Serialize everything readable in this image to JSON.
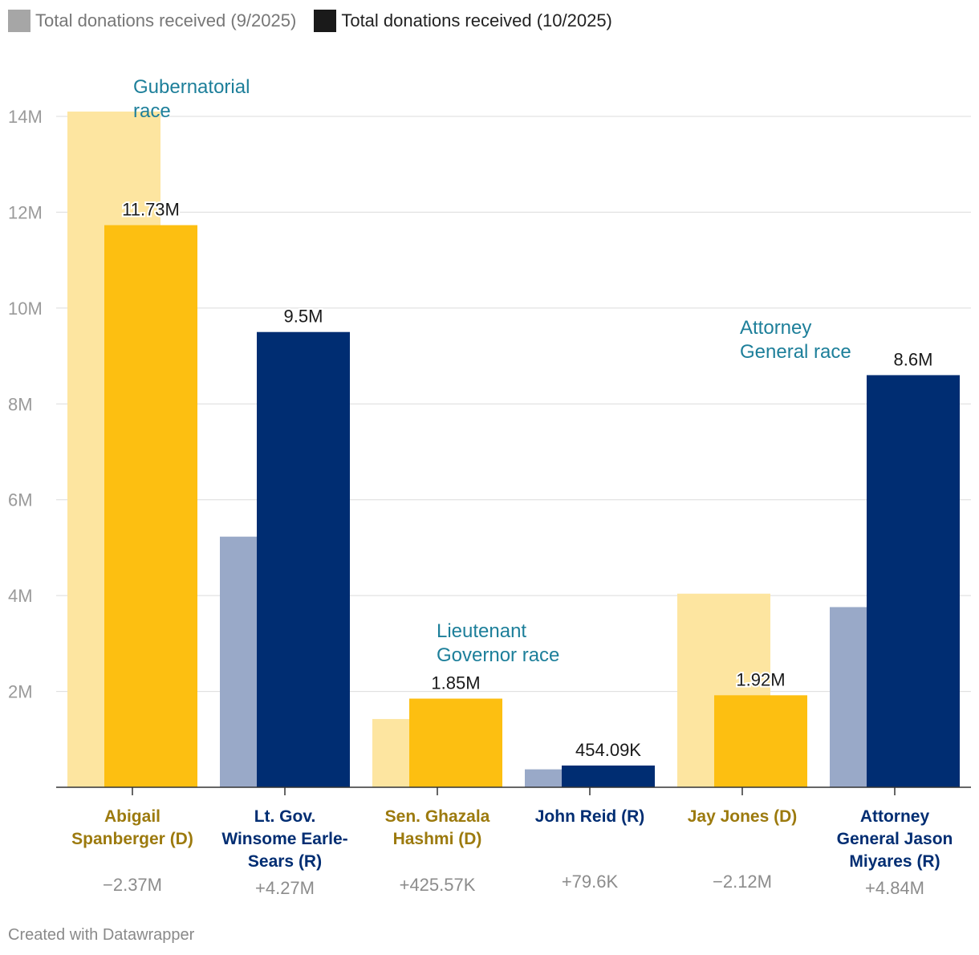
{
  "legend": {
    "previous_label": "Total donations received (9/2025)",
    "current_label": "Total donations received (10/2025)",
    "previous_color": "#a6a6a6",
    "current_color": "#1a1a1a"
  },
  "footer": "Created with Datawrapper",
  "chart_data": {
    "type": "bar",
    "categories": [
      "Abigail Spanberger (D)",
      "Lt. Gov. Winsome Earle-Sears (R)",
      "Sen. Ghazala Hashmi (D)",
      "John Reid (R)",
      "Jay Jones (D)",
      "Attorney General Jason Miyares (R)"
    ],
    "category_label_lines": [
      [
        "Abigail",
        "Spanberger (D)"
      ],
      [
        "Lt. Gov.",
        "Winsome Earle-",
        "Sears (R)"
      ],
      [
        "Sen. Ghazala",
        "Hashmi (D)"
      ],
      [
        "John Reid (R)"
      ],
      [
        "Jay Jones (D)"
      ],
      [
        "Attorney",
        "General Jason",
        "Miyares (R)"
      ]
    ],
    "series": [
      {
        "name": "Total donations received (9/2025)",
        "values": [
          14100000,
          5230000,
          1424430,
          374490,
          4040000,
          3760000
        ]
      },
      {
        "name": "Total donations received (10/2025)",
        "values": [
          11730000,
          9500000,
          1850000,
          454090,
          1920000,
          8600000
        ]
      }
    ],
    "value_labels": [
      "11.73M",
      "9.5M",
      "1.85M",
      "454.09K",
      "1.92M",
      "8.6M"
    ],
    "change_labels": [
      "−2.37M",
      "+4.27M",
      "+425.57K",
      "+79.6K",
      "−2.12M",
      "+4.84M"
    ],
    "party": [
      "D",
      "R",
      "D",
      "R",
      "D",
      "R"
    ],
    "party_colors": {
      "D": {
        "current": "#fdbf11",
        "previous": "#fde5a0",
        "label": "#9c7a0e"
      },
      "R": {
        "current": "#002d72",
        "previous": "#99a9c8",
        "label": "#002d72"
      }
    },
    "annotations": [
      {
        "lines": [
          "Gubernatorial",
          "race"
        ],
        "category_index": 0
      },
      {
        "lines": [
          "Lieutenant",
          "Governor race"
        ],
        "category_index": 2
      },
      {
        "lines": [
          "Attorney",
          "General race"
        ],
        "category_index": 4
      }
    ],
    "annotation_color": "#1d7f9a",
    "y_ticks": [
      2000000,
      4000000,
      6000000,
      8000000,
      10000000,
      12000000,
      14000000
    ],
    "y_tick_labels": [
      "2M",
      "4M",
      "6M",
      "8M",
      "10M",
      "12M",
      "14M"
    ],
    "ylim": [
      0,
      14000000
    ],
    "grid": true,
    "xlabel": "",
    "ylabel": "",
    "legend_position": "top-left"
  }
}
